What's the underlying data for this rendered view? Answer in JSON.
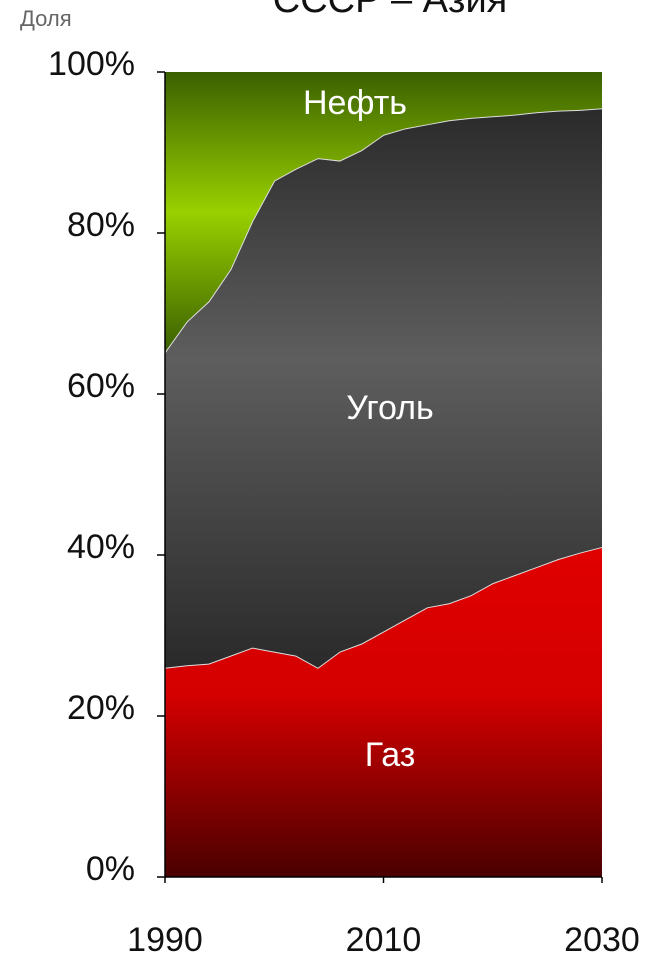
{
  "chart_data": {
    "type": "stacked_area",
    "title": "СССР – Азия",
    "y_label": "Доля",
    "x": [
      1990,
      1992,
      1994,
      1996,
      1998,
      2000,
      2002,
      2004,
      2006,
      2008,
      2010,
      2012,
      2014,
      2016,
      2018,
      2020,
      2022,
      2024,
      2026,
      2028,
      2030
    ],
    "series": [
      {
        "name": "Газ",
        "color": "#d40000",
        "values": [
          26,
          26.3,
          26.5,
          27.5,
          28.5,
          28,
          27.5,
          26,
          28,
          29,
          30.5,
          32,
          33.5,
          34,
          35,
          36.5,
          37.5,
          38.5,
          39.5,
          40.3,
          41
        ]
      },
      {
        "name": "Уголь",
        "color": "#4a4a4a",
        "values": [
          39.2,
          42.7,
          45,
          48,
          53,
          58.5,
          60.5,
          63.3,
          61,
          61.3,
          61.7,
          61,
          60,
          60,
          59.3,
          58,
          57.2,
          56.5,
          55.7,
          55,
          54.5
        ]
      },
      {
        "name": "Нефть",
        "color": "#7fbf00",
        "values": [
          34.8,
          31,
          28.5,
          24.5,
          18.5,
          13.5,
          12,
          10.7,
          11,
          9.7,
          7.8,
          7,
          6.5,
          6,
          5.7,
          5.5,
          5.3,
          5,
          4.8,
          4.7,
          4.5
        ]
      }
    ],
    "xlim": [
      1990,
      2030
    ],
    "xticks": [
      1990,
      2010,
      2030
    ],
    "ylim": [
      0,
      100
    ],
    "yticks": [
      {
        "value": 0,
        "label": "0%"
      },
      {
        "value": 20,
        "label": "20%"
      },
      {
        "value": 40,
        "label": "40%"
      },
      {
        "value": 60,
        "label": "60%"
      },
      {
        "value": 80,
        "label": "80%"
      },
      {
        "value": 100,
        "label": "100%"
      }
    ]
  }
}
